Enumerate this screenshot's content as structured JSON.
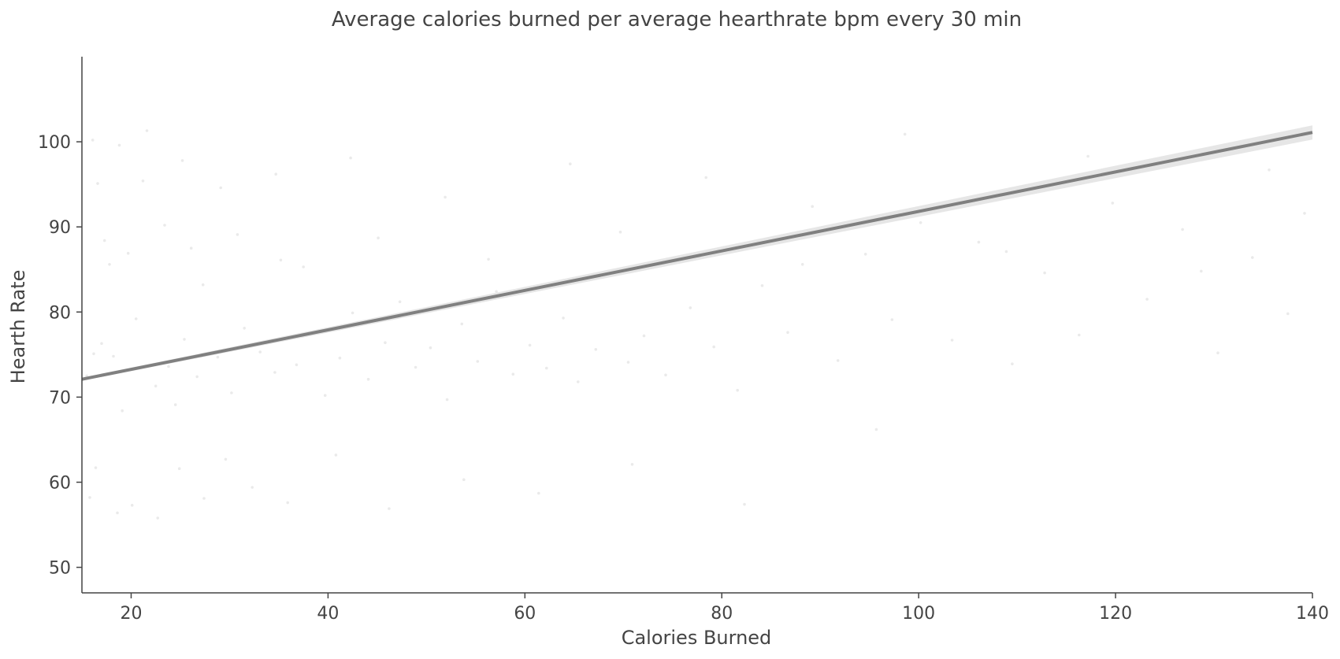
{
  "chart_data": {
    "type": "scatter",
    "title": "Average calories burned per average hearthrate bpm every 30 min",
    "xlabel": "Calories Burned",
    "ylabel": "Hearth Rate",
    "xlim": [
      15,
      140
    ],
    "ylim": [
      47,
      110
    ],
    "xticks": [
      20,
      40,
      60,
      80,
      100,
      120,
      140
    ],
    "yticks": [
      50,
      60,
      70,
      80,
      90,
      100
    ],
    "grid": false,
    "legend": "none",
    "point_color": "#9e9e9e",
    "point_opacity": 0.22,
    "points": [
      [
        15.5,
        72.5
      ],
      [
        16.2,
        75.1
      ],
      [
        17.0,
        76.3
      ],
      [
        15.8,
        58.2
      ],
      [
        16.4,
        61.7
      ],
      [
        18.2,
        74.8
      ],
      [
        19.1,
        68.4
      ],
      [
        20.5,
        79.2
      ],
      [
        17.8,
        85.6
      ],
      [
        16.6,
        95.1
      ],
      [
        21.2,
        95.4
      ],
      [
        22.5,
        71.3
      ],
      [
        23.8,
        73.6
      ],
      [
        24.5,
        69.1
      ],
      [
        25.4,
        76.8
      ],
      [
        26.7,
        72.4
      ],
      [
        27.3,
        83.2
      ],
      [
        28.8,
        74.7
      ],
      [
        30.2,
        70.5
      ],
      [
        31.5,
        78.1
      ],
      [
        33.1,
        75.3
      ],
      [
        34.6,
        72.9
      ],
      [
        35.2,
        86.1
      ],
      [
        36.8,
        73.8
      ],
      [
        38.4,
        77.5
      ],
      [
        39.7,
        70.2
      ],
      [
        41.2,
        74.6
      ],
      [
        42.5,
        79.9
      ],
      [
        44.1,
        72.1
      ],
      [
        45.8,
        76.4
      ],
      [
        47.3,
        81.2
      ],
      [
        48.9,
        73.5
      ],
      [
        50.4,
        75.8
      ],
      [
        52.1,
        69.7
      ],
      [
        53.6,
        78.6
      ],
      [
        55.2,
        74.2
      ],
      [
        57.1,
        82.4
      ],
      [
        58.8,
        72.7
      ],
      [
        60.5,
        76.1
      ],
      [
        62.2,
        73.4
      ],
      [
        63.9,
        79.3
      ],
      [
        65.4,
        71.8
      ],
      [
        67.2,
        75.6
      ],
      [
        68.8,
        84.3
      ],
      [
        70.5,
        74.1
      ],
      [
        72.1,
        77.2
      ],
      [
        74.3,
        72.6
      ],
      [
        76.8,
        80.5
      ],
      [
        79.2,
        75.9
      ],
      [
        81.6,
        70.8
      ],
      [
        84.1,
        83.1
      ],
      [
        86.7,
        77.6
      ],
      [
        89.2,
        92.4
      ],
      [
        91.8,
        74.3
      ],
      [
        94.6,
        86.8
      ],
      [
        97.3,
        79.1
      ],
      [
        100.2,
        90.5
      ],
      [
        103.4,
        76.7
      ],
      [
        106.1,
        88.2
      ],
      [
        109.5,
        73.9
      ],
      [
        112.8,
        84.6
      ],
      [
        116.3,
        77.3
      ],
      [
        119.7,
        92.8
      ],
      [
        123.2,
        81.5
      ],
      [
        126.8,
        89.7
      ],
      [
        130.4,
        75.2
      ],
      [
        133.9,
        86.4
      ],
      [
        137.5,
        79.8
      ],
      [
        139.2,
        91.6
      ],
      [
        18.6,
        56.4
      ],
      [
        20.1,
        57.3
      ],
      [
        22.7,
        55.8
      ],
      [
        24.9,
        61.6
      ],
      [
        27.4,
        58.1
      ],
      [
        29.6,
        62.7
      ],
      [
        32.3,
        59.4
      ],
      [
        35.9,
        57.6
      ],
      [
        40.8,
        63.2
      ],
      [
        46.2,
        56.9
      ],
      [
        53.8,
        60.3
      ],
      [
        61.4,
        58.7
      ],
      [
        70.9,
        62.1
      ],
      [
        82.3,
        57.4
      ],
      [
        95.7,
        66.2
      ],
      [
        16.1,
        100.2
      ],
      [
        18.8,
        99.6
      ],
      [
        21.6,
        101.3
      ],
      [
        25.2,
        97.8
      ],
      [
        29.1,
        94.6
      ],
      [
        34.7,
        96.2
      ],
      [
        42.3,
        98.1
      ],
      [
        51.9,
        93.5
      ],
      [
        64.6,
        97.4
      ],
      [
        78.4,
        95.8
      ],
      [
        98.6,
        100.9
      ],
      [
        117.2,
        98.3
      ],
      [
        135.6,
        96.7
      ],
      [
        17.3,
        88.4
      ],
      [
        19.7,
        86.9
      ],
      [
        23.4,
        90.2
      ],
      [
        26.1,
        87.5
      ],
      [
        30.8,
        89.1
      ],
      [
        37.5,
        85.3
      ],
      [
        45.1,
        88.7
      ],
      [
        56.3,
        86.2
      ],
      [
        69.7,
        89.4
      ],
      [
        88.2,
        85.6
      ],
      [
        108.9,
        87.1
      ],
      [
        128.7,
        84.8
      ]
    ],
    "regression": {
      "x": [
        15,
        140
      ],
      "y": [
        72.1,
        101.1
      ],
      "color": "#808080",
      "ci_color": "#e6e6e6"
    }
  }
}
